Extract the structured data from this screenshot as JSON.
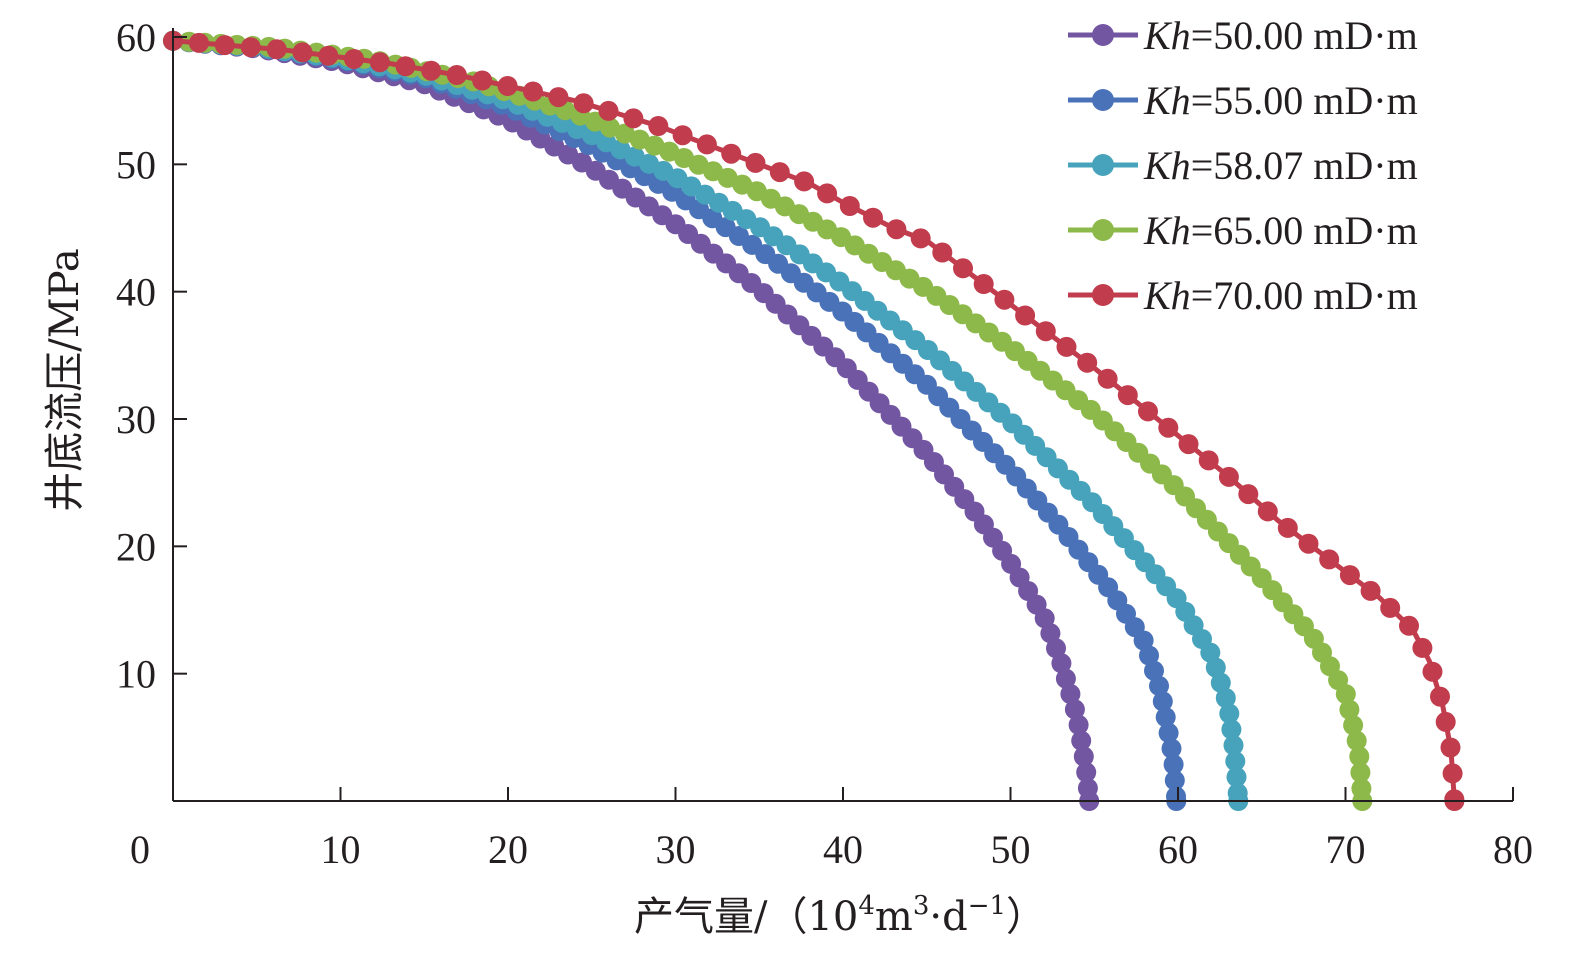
{
  "chart_data": {
    "type": "line",
    "title": "",
    "xlabel": {
      "prefix": "产气量/（10",
      "sup1": "4",
      "mid": "m",
      "sup2": "3",
      "mid2": "·d",
      "sup3": "−1",
      "suffix": "）"
    },
    "ylabel": "井底流压/MPa",
    "xlim": [
      0,
      80
    ],
    "ylim": [
      0,
      60
    ],
    "x_ticks": [
      0,
      10,
      20,
      30,
      40,
      50,
      60,
      70,
      80
    ],
    "y_ticks": [
      10,
      20,
      30,
      40,
      50,
      60
    ],
    "legend_position": "top-right",
    "series": [
      {
        "name": "Kh=50.00 mD·m",
        "legend": {
          "italic": "Kh",
          "rest": "=50.00 mD·m"
        },
        "color": "#7356a2",
        "points": [
          [
            0,
            59.7
          ],
          [
            5,
            59.1
          ],
          [
            10,
            58.0
          ],
          [
            15,
            56.3
          ],
          [
            20,
            53.5
          ],
          [
            25,
            49.7
          ],
          [
            30,
            45.3
          ],
          [
            35,
            40.2
          ],
          [
            40,
            34.3
          ],
          [
            45,
            27.3
          ],
          [
            48,
            22.5
          ],
          [
            50,
            18.7
          ],
          [
            52,
            14.5
          ],
          [
            53,
            11.0
          ],
          [
            54,
            6.5
          ],
          [
            54.5,
            2.5
          ],
          [
            54.7,
            0
          ]
        ]
      },
      {
        "name": "Kh=55.00 mD·m",
        "legend": {
          "italic": "Kh",
          "rest": "=55.00 mD·m"
        },
        "color": "#4a72b8",
        "points": [
          [
            0,
            59.7
          ],
          [
            5,
            59.2
          ],
          [
            10,
            58.2
          ],
          [
            15,
            56.8
          ],
          [
            20,
            54.5
          ],
          [
            25,
            51.4
          ],
          [
            30,
            47.7
          ],
          [
            35,
            43.3
          ],
          [
            40,
            38.4
          ],
          [
            45,
            32.7
          ],
          [
            50,
            26.0
          ],
          [
            53,
            21.5
          ],
          [
            56,
            16.5
          ],
          [
            58,
            12.5
          ],
          [
            59,
            8.5
          ],
          [
            59.7,
            3.5
          ],
          [
            59.9,
            0
          ]
        ]
      },
      {
        "name": "Kh=58.07 mD·m",
        "legend": {
          "italic": "Kh",
          "rest": "=58.07 mD·m"
        },
        "color": "#47a3bb",
        "points": [
          [
            0,
            59.7
          ],
          [
            5,
            59.2
          ],
          [
            10,
            58.3
          ],
          [
            15,
            57.0
          ],
          [
            20,
            55.0
          ],
          [
            25,
            52.3
          ],
          [
            30,
            49.0
          ],
          [
            35,
            45.1
          ],
          [
            40,
            40.6
          ],
          [
            45,
            35.5
          ],
          [
            50,
            29.8
          ],
          [
            55,
            23.3
          ],
          [
            60,
            15.8
          ],
          [
            62,
            11.5
          ],
          [
            63,
            7.5
          ],
          [
            63.4,
            3.5
          ],
          [
            63.6,
            0
          ]
        ]
      },
      {
        "name": "Kh=65.00 mD·m",
        "legend": {
          "italic": "Kh",
          "rest": "=65.00 mD·m"
        },
        "color": "#8db84a",
        "points": [
          [
            0,
            59.7
          ],
          [
            6,
            59.2
          ],
          [
            12,
            58.2
          ],
          [
            18,
            56.5
          ],
          [
            24,
            54.0
          ],
          [
            30,
            50.8
          ],
          [
            35,
            47.8
          ],
          [
            40,
            44.2
          ],
          [
            45,
            40.2
          ],
          [
            50,
            35.6
          ],
          [
            55,
            30.5
          ],
          [
            60,
            24.5
          ],
          [
            65,
            17.5
          ],
          [
            68,
            13.0
          ],
          [
            70,
            8.5
          ],
          [
            70.8,
            4.0
          ],
          [
            71.0,
            0
          ]
        ]
      },
      {
        "name": "Kh=70.00 mD·m",
        "legend": {
          "italic": "Kh",
          "rest": "=70.00 mD·m"
        },
        "color": "#c13c4c",
        "points": [
          [
            0,
            59.7
          ],
          [
            6.5,
            59.0
          ],
          [
            13,
            57.9
          ],
          [
            17,
            57.0
          ],
          [
            20.5,
            56.0
          ],
          [
            24,
            55.0
          ],
          [
            26.5,
            54.0
          ],
          [
            29,
            53.0
          ],
          [
            31,
            52.0
          ],
          [
            33,
            51.0
          ],
          [
            35,
            50.0
          ],
          [
            38,
            48.5
          ],
          [
            40,
            47.0
          ],
          [
            43,
            45.0
          ],
          [
            45,
            44.0
          ],
          [
            50,
            39.0
          ],
          [
            55,
            34.0
          ],
          [
            60,
            28.7
          ],
          [
            63,
            25.5
          ],
          [
            66,
            22.0
          ],
          [
            69,
            19.0
          ],
          [
            72,
            16.0
          ],
          [
            74,
            13.5
          ],
          [
            75,
            11.0
          ],
          [
            75.8,
            7.5
          ],
          [
            76.3,
            4.0
          ],
          [
            76.5,
            0
          ]
        ]
      }
    ]
  }
}
